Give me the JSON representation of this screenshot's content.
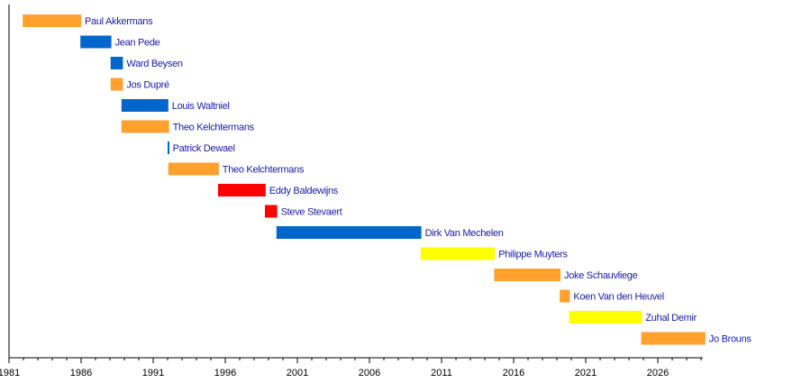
{
  "chart_data": {
    "type": "timeline",
    "title": "",
    "xlim": [
      1981,
      2029.1
    ],
    "xticks": [
      "1981",
      "1986",
      "1991",
      "1996",
      "2001",
      "2006",
      "2011",
      "2016",
      "2021",
      "2026"
    ],
    "minor_tick_step": 1,
    "colors": {
      "orange": "#FFA02F",
      "blue": "#0066CC",
      "red": "#FF0000",
      "yellow": "#FFFF00",
      "label": "#1A1AA6"
    },
    "bars": [
      {
        "label": "Paul Akkermans",
        "start": 1981.95,
        "end": 1986.0,
        "color": "orange"
      },
      {
        "label": "Jean Pede",
        "start": 1985.95,
        "end": 1988.1,
        "color": "blue"
      },
      {
        "label": "Ward Beysen",
        "start": 1988.05,
        "end": 1988.9,
        "color": "blue"
      },
      {
        "label": "Jos Dupré",
        "start": 1988.05,
        "end": 1988.9,
        "color": "orange"
      },
      {
        "label": "Louis Waltniel",
        "start": 1988.8,
        "end": 1992.05,
        "color": "blue"
      },
      {
        "label": "Theo Kelchtermans",
        "start": 1988.8,
        "end": 1992.1,
        "color": "orange"
      },
      {
        "label": "Patrick Dewael",
        "start": 1992.0,
        "end": 1992.1,
        "color": "blue"
      },
      {
        "label": "Theo Kelchtermans",
        "start": 1992.05,
        "end": 1995.55,
        "color": "orange"
      },
      {
        "label": "Eddy Baldewijns",
        "start": 1995.5,
        "end": 1998.8,
        "color": "red"
      },
      {
        "label": "Steve Stevaert",
        "start": 1998.75,
        "end": 1999.6,
        "color": "red"
      },
      {
        "label": "Dirk Van Mechelen",
        "start": 1999.55,
        "end": 2009.6,
        "color": "blue"
      },
      {
        "label": "Philippe Muyters",
        "start": 2009.55,
        "end": 2014.7,
        "color": "yellow"
      },
      {
        "label": "Joke Schauvliege",
        "start": 2014.65,
        "end": 2019.25,
        "color": "orange"
      },
      {
        "label": "Koen Van den Heuvel",
        "start": 2019.2,
        "end": 2019.9,
        "color": "orange"
      },
      {
        "label": "Zuhal Demir",
        "start": 2019.85,
        "end": 2024.9,
        "color": "yellow"
      },
      {
        "label": "Jo Brouns",
        "start": 2024.85,
        "end": 2029.3,
        "color": "orange"
      }
    ]
  }
}
